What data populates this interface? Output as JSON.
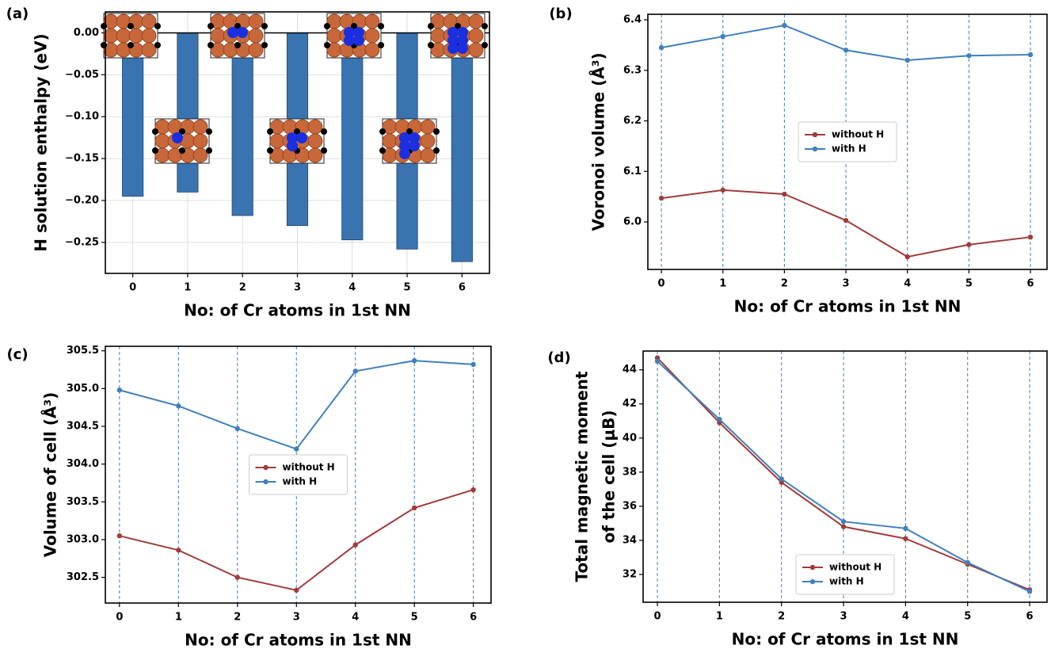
{
  "chart_data": [
    {
      "type": "bar",
      "label": "(a)",
      "ylabel": "H solution enthalpy (eV)",
      "xlabel": "No: of Cr atoms in 1st NN",
      "categories": [
        "0",
        "1",
        "2",
        "3",
        "4",
        "5",
        "6"
      ],
      "values": [
        -0.195,
        -0.19,
        -0.218,
        -0.23,
        -0.247,
        -0.258,
        -0.273
      ],
      "color": "#3a74b0",
      "ylim": [
        -0.287,
        0.025
      ],
      "yticks": [
        {
          "value": 0,
          "label": "0.00"
        },
        {
          "value": -0.05,
          "label": "−0.05"
        },
        {
          "value": -0.1,
          "label": "−0.10"
        },
        {
          "value": -0.15,
          "label": "−0.15"
        },
        {
          "value": -0.2,
          "label": "−0.20"
        },
        {
          "value": -0.25,
          "label": "−0.25"
        }
      ],
      "grid": "both"
    },
    {
      "type": "line",
      "label": "(b)",
      "ylabel": "Voronoi volume (Å³)",
      "xlabel": "No: of Cr atoms in 1st NN",
      "x": [
        0,
        1,
        2,
        3,
        4,
        5,
        6
      ],
      "xlim": [
        -0.22,
        6.27
      ],
      "xticks": [
        0,
        1,
        2,
        3,
        4,
        5,
        6
      ],
      "ylim": [
        5.906,
        6.411
      ],
      "yticks": [
        {
          "value": 6.0,
          "label": "6.0"
        },
        6.1,
        6.2,
        6.3,
        6.4
      ],
      "series": [
        {
          "name": "without H",
          "color": "#a23b3b",
          "values": [
            6.047,
            6.063,
            6.055,
            6.003,
            5.931,
            5.955,
            5.97
          ]
        },
        {
          "name": "with H",
          "color": "#3f80bf",
          "values": [
            6.345,
            6.367,
            6.389,
            6.34,
            6.32,
            6.329,
            6.331
          ]
        }
      ],
      "grid": "x",
      "legend": "center"
    },
    {
      "type": "line",
      "label": "(c)",
      "ylabel": "Volume of cell (Å³)",
      "xlabel": "No: of Cr atoms in 1st NN",
      "x": [
        0,
        1,
        2,
        3,
        4,
        5,
        6
      ],
      "xlim": [
        -0.24,
        6.3
      ],
      "xticks": [
        0,
        1,
        2,
        3,
        4,
        5,
        6
      ],
      "ylim": [
        302.16,
        305.56
      ],
      "yticks": [
        302.5,
        {
          "value": 303,
          "label": "303.0"
        },
        303.5,
        {
          "value": 304,
          "label": "304.0"
        },
        304.5,
        {
          "value": 305,
          "label": "305.0"
        },
        305.5
      ],
      "series": [
        {
          "name": "without H",
          "color": "#a23b3b",
          "values": [
            303.05,
            302.86,
            302.5,
            302.33,
            302.93,
            303.42,
            303.66
          ]
        },
        {
          "name": "with H",
          "color": "#3f80bf",
          "values": [
            304.98,
            304.77,
            304.47,
            304.2,
            305.23,
            305.37,
            305.32
          ]
        }
      ],
      "grid": "x",
      "legend": "center"
    },
    {
      "type": "line",
      "label": "(d)",
      "ylabel": [
        "Total magnetic moment",
        "of the cell (μB)"
      ],
      "xlabel": "No: of Cr atoms in 1st NN",
      "x": [
        0,
        1,
        2,
        3,
        4,
        5,
        6
      ],
      "xlim": [
        -0.23,
        6.28
      ],
      "xticks": [
        0,
        1,
        2,
        3,
        4,
        5,
        6
      ],
      "ylim": [
        30.37,
        45.1
      ],
      "yticks": [
        32,
        34,
        36,
        38,
        40,
        42,
        44
      ],
      "series": [
        {
          "name": "without H",
          "color": "#a23b3b",
          "values": [
            44.7,
            40.9,
            37.4,
            34.8,
            34.1,
            32.6,
            31.1
          ]
        },
        {
          "name": "with H",
          "color": "#3f80bf",
          "values": [
            44.5,
            41.1,
            37.6,
            35.1,
            34.7,
            32.7,
            31.0
          ]
        }
      ],
      "grid": "x",
      "legend": "lower center"
    }
  ]
}
